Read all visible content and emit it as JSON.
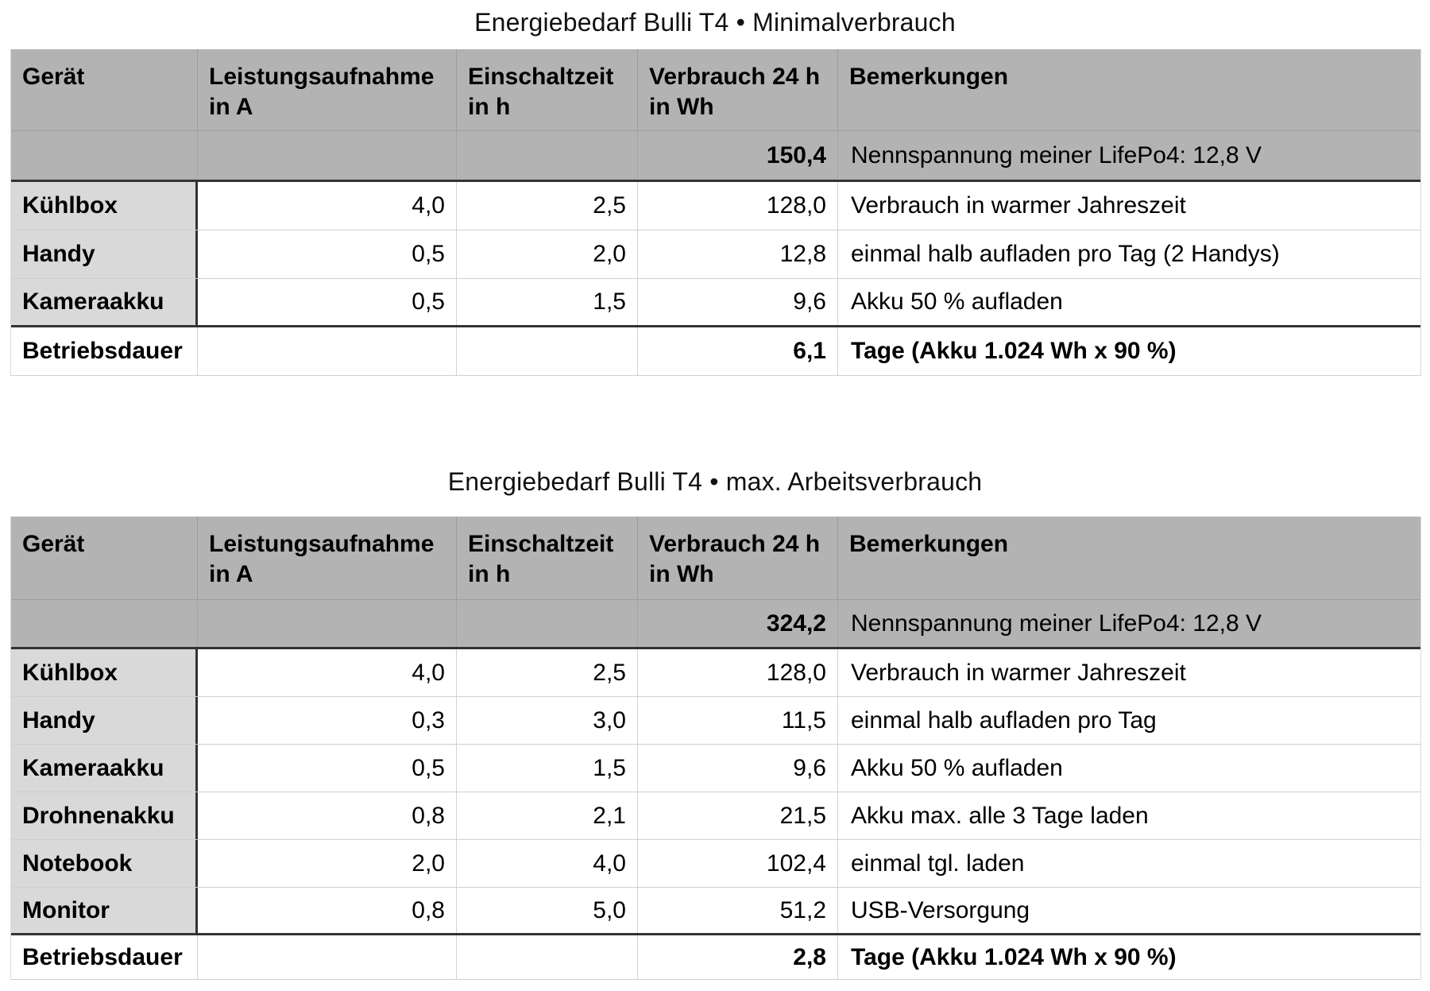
{
  "colors": {
    "header_fill": "#b3b3b3",
    "row_header_fill": "#d9d9d9",
    "thick_border": "#333333",
    "thin_border_light": "#d2d2d2",
    "thin_border_gray": "#9e9e9e",
    "background": "#ffffff",
    "text": "#000000"
  },
  "tables": [
    {
      "title": "Energiebedarf Bulli T4 • Minimalverbrauch",
      "columns": [
        "Gerät",
        "Leistungsaufnahme\nin A",
        "Einschaltzeit\nin h",
        "Verbrauch 24 h\nin Wh",
        "Bemerkungen"
      ],
      "summary": {
        "consumption": "150,4",
        "remark": "Nennspannung meiner LifePo4: 12,8 V"
      },
      "rows": [
        {
          "device": "Kühlbox",
          "power": "4,0",
          "hours": "2,5",
          "consumption": "128,0",
          "remark": "Verbrauch in warmer Jahreszeit"
        },
        {
          "device": "Handy",
          "power": "0,5",
          "hours": "2,0",
          "consumption": "12,8",
          "remark": "einmal halb aufladen pro Tag (2 Handys)"
        },
        {
          "device": "Kameraakku",
          "power": "0,5",
          "hours": "1,5",
          "consumption": "9,6",
          "remark": "Akku 50 % aufladen"
        }
      ],
      "footer": {
        "label": "Betriebsdauer",
        "consumption": "6,1",
        "remark": "Tage (Akku 1.024 Wh x 90 %)"
      }
    },
    {
      "title": "Energiebedarf Bulli T4 • max. Arbeitsverbrauch",
      "columns": [
        "Gerät",
        "Leistungsaufnahme\nin A",
        "Einschaltzeit\nin h",
        "Verbrauch 24 h\nin Wh",
        "Bemerkungen"
      ],
      "summary": {
        "consumption": "324,2",
        "remark": "Nennspannung meiner LifePo4: 12,8 V"
      },
      "rows": [
        {
          "device": "Kühlbox",
          "power": "4,0",
          "hours": "2,5",
          "consumption": "128,0",
          "remark": "Verbrauch in warmer Jahreszeit"
        },
        {
          "device": "Handy",
          "power": "0,3",
          "hours": "3,0",
          "consumption": "11,5",
          "remark": "einmal halb aufladen pro Tag"
        },
        {
          "device": "Kameraakku",
          "power": "0,5",
          "hours": "1,5",
          "consumption": "9,6",
          "remark": "Akku 50 % aufladen"
        },
        {
          "device": "Drohnenakku",
          "power": "0,8",
          "hours": "2,1",
          "consumption": "21,5",
          "remark": "Akku max. alle 3 Tage laden"
        },
        {
          "device": "Notebook",
          "power": "2,0",
          "hours": "4,0",
          "consumption": "102,4",
          "remark": "einmal tgl. laden"
        },
        {
          "device": "Monitor",
          "power": "0,8",
          "hours": "5,0",
          "consumption": "51,2",
          "remark": "USB-Versorgung"
        }
      ],
      "footer": {
        "label": "Betriebsdauer",
        "consumption": "2,8",
        "remark": "Tage (Akku 1.024 Wh x 90 %)"
      }
    }
  ]
}
